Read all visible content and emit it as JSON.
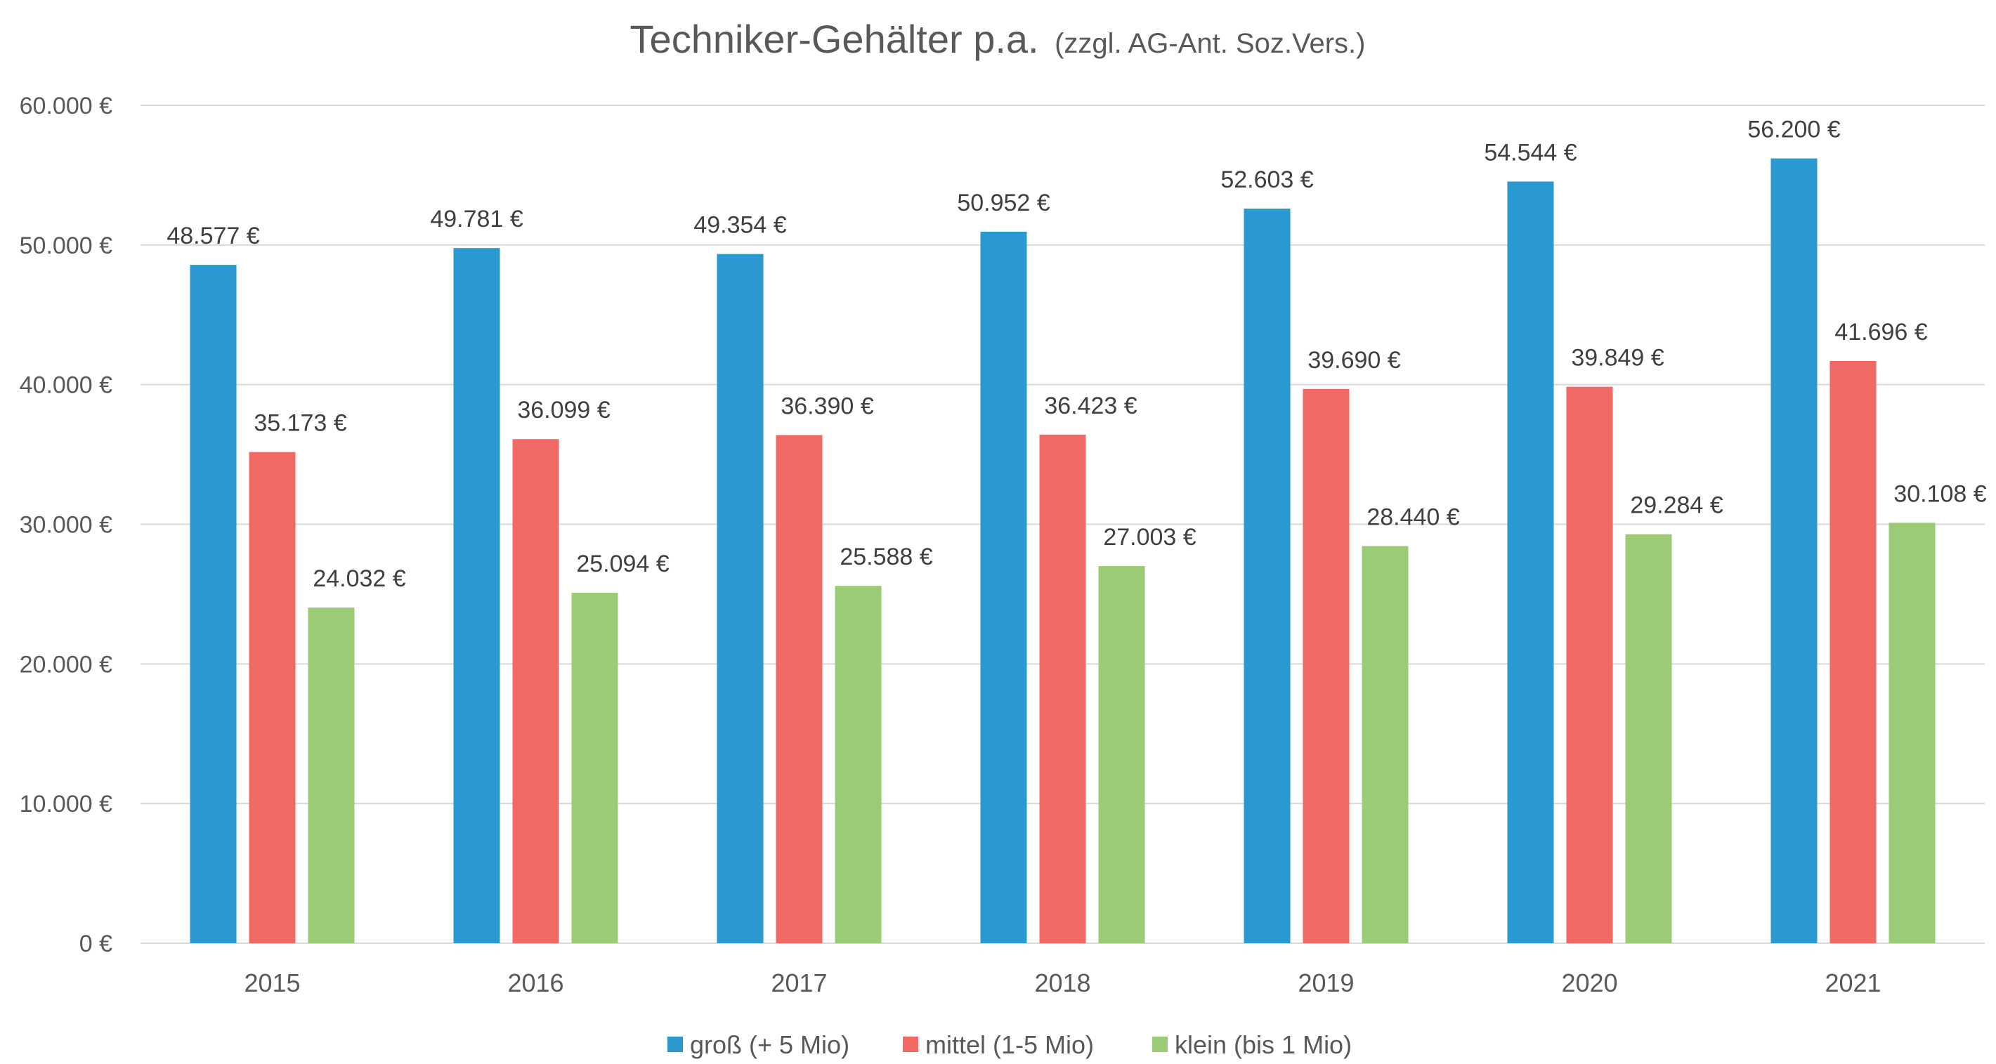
{
  "chart_data": {
    "type": "bar",
    "title": "Techniker-Gehälter p.a.",
    "subtitle": "(zzgl. AG-Ant. Soz.Vers.)",
    "categories": [
      "2015",
      "2016",
      "2017",
      "2018",
      "2019",
      "2020",
      "2021"
    ],
    "series": [
      {
        "name": "groß (+ 5 Mio)",
        "color": "#2999D0",
        "values": [
          48577,
          49781,
          49354,
          50952,
          52603,
          54544,
          56200
        ],
        "labels": [
          "48.577 €",
          "49.781 €",
          "49.354 €",
          "50.952 €",
          "52.603 €",
          "54.544 €",
          "56.200 €"
        ]
      },
      {
        "name": "mittel (1-5 Mio)",
        "color": "#F06964",
        "values": [
          35173,
          36099,
          36390,
          36423,
          39690,
          39849,
          41696
        ],
        "labels": [
          "35.173 €",
          "36.099 €",
          "36.390 €",
          "36.423 €",
          "39.690 €",
          "39.849 €",
          "41.696 €"
        ]
      },
      {
        "name": "klein (bis 1 Mio)",
        "color": "#9BCB74",
        "values": [
          24032,
          25094,
          25588,
          27003,
          28440,
          29284,
          30108
        ],
        "labels": [
          "24.032 €",
          "25.094 €",
          "25.588 €",
          "27.003 €",
          "28.440 €",
          "29.284 €",
          "30.108 €"
        ]
      }
    ],
    "ylim": [
      0,
      60000
    ],
    "yticks": [
      0,
      10000,
      20000,
      30000,
      40000,
      50000,
      60000
    ],
    "ytick_labels": [
      "0 €",
      "10.000 €",
      "20.000 €",
      "30.000 €",
      "40.000 €",
      "50.000 €",
      "60.000 €"
    ],
    "grid": true,
    "legend_position": "bottom",
    "gridline_color": "#D9D9D9"
  }
}
